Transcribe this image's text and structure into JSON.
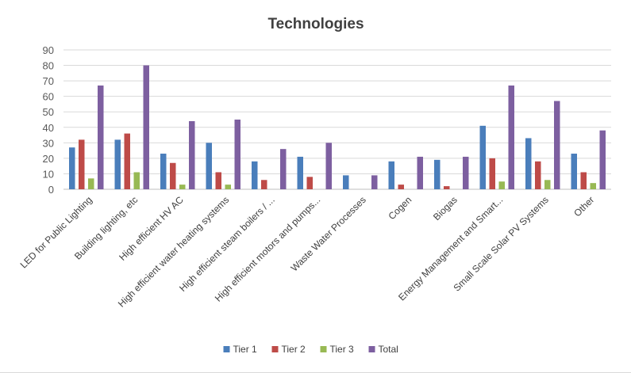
{
  "chart_data": {
    "type": "bar",
    "title": "Technologies",
    "xlabel": "",
    "ylabel": "",
    "ylim": [
      0,
      90
    ],
    "yticks": [
      0,
      10,
      20,
      30,
      40,
      50,
      60,
      70,
      80,
      90
    ],
    "grid": true,
    "legend_position": "bottom",
    "categories": [
      "LED for Public Lighting",
      "Building lighting, etc",
      "High efficient HV AC",
      "High efficient water heating systems",
      "High efficient steam boilers / ...",
      "High efficient motors and pumps...",
      "Waste Water Processes",
      "Cogen",
      "Biogas",
      "Energy Management and Smart...",
      "Small Scale Solar PV Systems",
      "Other"
    ],
    "series": [
      {
        "name": "Tier 1",
        "color": "#4a7ebb",
        "values": [
          27,
          32,
          23,
          30,
          18,
          21,
          9,
          18,
          19,
          41,
          33,
          23
        ]
      },
      {
        "name": "Tier 2",
        "color": "#be4b48",
        "values": [
          32,
          36,
          17,
          11,
          6,
          8,
          0,
          3,
          2,
          20,
          18,
          11
        ]
      },
      {
        "name": "Tier 3",
        "color": "#98b954",
        "values": [
          7,
          11,
          3,
          3,
          0,
          0,
          0,
          0,
          0,
          5,
          6,
          4
        ]
      },
      {
        "name": "Total",
        "color": "#7d5fa0",
        "values": [
          67,
          80,
          44,
          45,
          26,
          30,
          9,
          21,
          21,
          67,
          57,
          38
        ]
      }
    ]
  }
}
